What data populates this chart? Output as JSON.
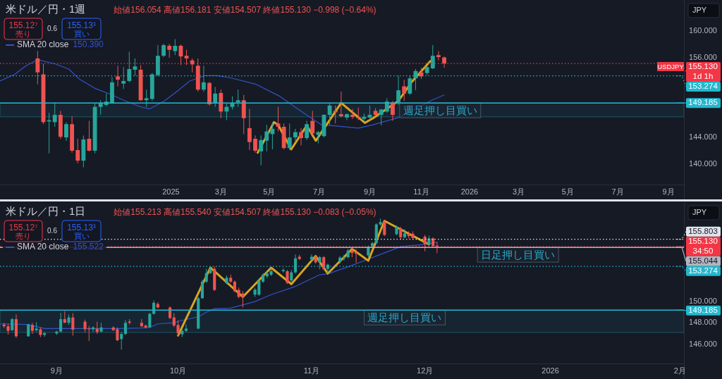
{
  "chart_data": [
    {
      "type": "candlestick",
      "title": "米ドル／円・1週",
      "subtitle": "始値156.054 高値156.181 安値154.507 終値155.130 −0.998 (−0.64%)",
      "x": [
        "2024-07-22",
        "2024-07-29",
        "2024-08-05",
        "2024-08-12",
        "2024-08-19",
        "2024-08-26",
        "2024-09-02",
        "2024-09-09",
        "2024-09-16",
        "2024-09-23",
        "2024-09-30",
        "2024-10-07",
        "2024-10-14",
        "2024-10-21",
        "2024-10-28",
        "2024-11-04",
        "2024-11-11",
        "2024-11-18",
        "2024-11-25",
        "2024-12-02",
        "2024-12-09",
        "2024-12-16",
        "2024-12-23",
        "2024-12-30",
        "2025-01-06",
        "2025-01-13",
        "2025-01-20",
        "2025-01-27",
        "2025-02-03",
        "2025-02-10",
        "2025-02-17",
        "2025-02-24",
        "2025-03-03",
        "2025-03-10",
        "2025-03-17",
        "2025-03-24",
        "2025-03-31",
        "2025-04-07",
        "2025-04-14",
        "2025-04-21",
        "2025-04-28",
        "2025-05-05",
        "2025-05-12",
        "2025-05-19",
        "2025-05-26",
        "2025-06-02",
        "2025-06-09",
        "2025-06-16",
        "2025-06-23",
        "2025-06-30",
        "2025-07-07",
        "2025-07-14",
        "2025-07-21",
        "2025-07-28",
        "2025-08-04",
        "2025-08-11",
        "2025-08-18",
        "2025-08-25",
        "2025-09-01",
        "2025-09-08",
        "2025-09-15",
        "2025-09-22",
        "2025-09-29",
        "2025-10-06",
        "2025-10-13",
        "2025-10-20",
        "2025-10-27",
        "2025-11-03",
        "2025-11-10",
        "2025-11-17",
        "2025-11-24",
        "2025-12-01"
      ],
      "ohlc": [
        [
          155.9,
          157.0,
          152.0,
          153.8
        ],
        [
          153.5,
          155.1,
          146.0,
          146.3
        ],
        [
          146.4,
          147.7,
          141.6,
          146.6
        ],
        [
          146.3,
          149.3,
          145.6,
          147.4
        ],
        [
          147.4,
          148.0,
          143.8,
          144.1
        ],
        [
          144.0,
          146.3,
          143.5,
          146.0
        ],
        [
          146.0,
          147.2,
          141.7,
          142.0
        ],
        [
          142.1,
          143.8,
          140.1,
          140.5
        ],
        [
          140.5,
          144.3,
          139.5,
          143.7
        ],
        [
          143.8,
          146.5,
          141.9,
          142.0
        ],
        [
          142.0,
          149.1,
          141.6,
          148.6
        ],
        [
          148.6,
          149.6,
          147.4,
          149.1
        ],
        [
          148.9,
          150.6,
          148.7,
          149.4
        ],
        [
          149.1,
          153.1,
          149.1,
          152.3
        ],
        [
          153.2,
          154.8,
          151.7,
          152.7
        ],
        [
          152.1,
          154.6,
          151.3,
          152.5
        ],
        [
          152.5,
          156.9,
          152.3,
          154.3
        ],
        [
          154.2,
          155.9,
          153.3,
          154.7
        ],
        [
          154.2,
          154.9,
          149.5,
          149.6
        ],
        [
          149.6,
          151.2,
          148.6,
          149.9
        ],
        [
          149.8,
          153.7,
          149.5,
          153.5
        ],
        [
          153.4,
          157.9,
          153.2,
          156.3
        ],
        [
          156.3,
          158.1,
          156.1,
          157.9
        ],
        [
          157.8,
          158.1,
          156.0,
          157.2
        ],
        [
          157.0,
          158.8,
          156.4,
          157.8
        ],
        [
          157.8,
          158.0,
          154.9,
          156.2
        ],
        [
          156.3,
          157.2,
          154.9,
          155.9
        ],
        [
          155.6,
          155.9,
          153.8,
          155.0
        ],
        [
          154.8,
          155.9,
          150.9,
          151.2
        ],
        [
          151.2,
          154.8,
          150.9,
          152.3
        ],
        [
          152.2,
          152.4,
          148.8,
          149.0
        ],
        [
          149.1,
          151.6,
          148.6,
          150.6
        ],
        [
          150.7,
          151.2,
          146.9,
          147.9
        ],
        [
          147.9,
          149.2,
          146.6,
          148.6
        ],
        [
          148.6,
          150.2,
          148.2,
          149.1
        ],
        [
          149.3,
          151.2,
          148.6,
          149.6
        ],
        [
          149.6,
          150.4,
          144.5,
          146.9
        ],
        [
          145.4,
          148.3,
          142.1,
          143.3
        ],
        [
          143.8,
          144.3,
          141.7,
          142.0
        ],
        [
          141.9,
          144.3,
          139.8,
          143.6
        ],
        [
          143.5,
          145.9,
          141.9,
          144.9
        ],
        [
          144.5,
          146.3,
          142.2,
          145.3
        ],
        [
          146.1,
          148.6,
          144.9,
          145.6
        ],
        [
          145.6,
          146.1,
          142.2,
          142.4
        ],
        [
          142.4,
          146.1,
          142.1,
          144.0
        ],
        [
          144.0,
          145.3,
          143.5,
          144.8
        ],
        [
          144.8,
          145.4,
          142.8,
          143.9
        ],
        [
          143.9,
          146.5,
          143.6,
          146.0
        ],
        [
          146.5,
          148.0,
          144.3,
          144.6
        ],
        [
          144.4,
          145.0,
          143.1,
          144.8
        ],
        [
          144.2,
          147.5,
          144.0,
          147.4
        ],
        [
          147.4,
          149.2,
          145.9,
          148.8
        ],
        [
          148.0,
          148.8,
          146.1,
          147.8
        ],
        [
          147.5,
          150.9,
          147.0,
          147.2
        ],
        [
          147.0,
          147.6,
          146.6,
          147.5
        ],
        [
          147.4,
          148.3,
          146.8,
          147.1
        ],
        [
          147.1,
          148.5,
          146.6,
          146.9
        ],
        [
          146.8,
          147.6,
          146.5,
          147.1
        ],
        [
          147.0,
          148.8,
          146.6,
          147.4
        ],
        [
          148.0,
          148.4,
          147.2,
          147.4
        ],
        [
          147.4,
          148.3,
          145.8,
          148.2
        ],
        [
          147.9,
          149.9,
          147.7,
          149.4
        ],
        [
          149.3,
          149.5,
          146.5,
          147.4
        ],
        [
          149.3,
          153.3,
          148.9,
          151.1
        ],
        [
          151.7,
          152.7,
          149.5,
          150.6
        ],
        [
          150.6,
          153.3,
          150.4,
          152.9
        ],
        [
          152.9,
          154.3,
          151.1,
          154.0
        ],
        [
          153.8,
          154.5,
          152.8,
          153.2
        ],
        [
          153.7,
          154.7,
          153.4,
          154.6
        ],
        [
          154.4,
          157.9,
          154.3,
          156.3
        ],
        [
          156.4,
          157.0,
          155.6,
          156.1
        ],
        [
          156.054,
          156.181,
          154.507,
          155.13
        ]
      ],
      "series": [
        {
          "name": "SMA 20 close",
          "type": "line",
          "color": "#3452c6",
          "x": [
            "2024-06-06",
            "2024-06-24",
            "2024-07-08",
            "2024-07-22",
            "2024-08-12",
            "2024-08-29",
            "2024-09-11",
            "2024-09-30",
            "2024-10-21",
            "2024-11-06",
            "2024-11-25",
            "2024-12-06",
            "2024-12-24",
            "2025-01-10",
            "2025-01-24",
            "2025-02-11",
            "2025-02-26",
            "2025-03-14",
            "2025-04-15",
            "2025-05-14",
            "2025-06-12",
            "2025-07-04",
            "2025-07-25",
            "2025-08-18",
            "2025-09-05",
            "2025-10-06",
            "2025-10-28",
            "2025-11-14",
            "2025-12-01"
          ],
          "values": [
            152.5,
            153.5,
            154.8,
            155.7,
            155.1,
            154.3,
            152.8,
            151.4,
            150.4,
            149.5,
            148.6,
            148.3,
            149.5,
            151.1,
            152.5,
            153.3,
            153.3,
            153.0,
            152.0,
            150.2,
            147.7,
            145.9,
            145.7,
            145.4,
            145.9,
            147.0,
            148.3,
            149.5,
            150.4
          ]
        },
        {
          "type": "line",
          "color": "#d9a41e",
          "x": [
            "2025-04-17",
            "2025-05-07",
            "2025-05-12",
            "2025-05-28",
            "2025-06-16",
            "2025-06-27",
            "2025-07-28",
            "2025-08-26",
            "2025-09-05",
            "2025-10-06",
            "2025-10-22",
            "2025-11-14"
          ],
          "values": [
            141.7,
            146.3,
            145.9,
            142.2,
            145.8,
            143.5,
            149.2,
            146.2,
            146.9,
            149.5,
            152.3,
            155.5
          ]
        }
      ],
      "xlim": [
        "2024-06-06",
        "2026-09-20"
      ],
      "xticks": [
        {
          "value": "2025-01-01",
          "label": "2025"
        },
        {
          "value": "2025-03-03",
          "label": "3月"
        },
        {
          "value": "2025-05-01",
          "label": "5月"
        },
        {
          "value": "2025-07-01",
          "label": "7月"
        },
        {
          "value": "2025-09-01",
          "label": "9月"
        },
        {
          "value": "2025-11-03",
          "label": "11月"
        },
        {
          "value": "2026-01-01",
          "label": "2026"
        },
        {
          "value": "2026-03-02",
          "label": "3月"
        },
        {
          "value": "2026-05-01",
          "label": "5月"
        },
        {
          "value": "2026-07-01",
          "label": "7月"
        },
        {
          "value": "2026-09-01",
          "label": "9月"
        }
      ],
      "ylim": [
        136.9,
        164.7
      ],
      "yticks": [
        {
          "value": 140,
          "label": "140.000"
        },
        {
          "value": 144,
          "label": "144.000"
        },
        {
          "value": 156,
          "label": "156.000"
        },
        {
          "value": 160,
          "label": "160.000"
        }
      ],
      "ref_lines": [
        {
          "axis": "y",
          "value": 155.13,
          "label": "155.130\n1d 1h",
          "color": "#f23645",
          "line_style": "dotted"
        },
        {
          "axis": "y",
          "value": 153.274,
          "label": "153.274",
          "color": "#22b8cf",
          "line_style": "dotted"
        },
        {
          "axis": "y",
          "value": 149.185,
          "label": "149.185",
          "color": "#22b8cf",
          "line_style": "solid"
        }
      ],
      "bands": [
        {
          "axis": "y",
          "from": 147.1,
          "to": 149.185,
          "color": "#22b8cf"
        }
      ],
      "annotations": [
        "155.12⁷",
        "売り",
        "0.6",
        "155.13³",
        "買い",
        "150.390",
        "JPY",
        "USDJPY",
        {
          "text": "週足押し目買い",
          "x": "2025-11-26",
          "y": 149.185
        }
      ],
      "legend": "top left"
    },
    {
      "type": "candlestick",
      "title": "米ドル／円・1日",
      "subtitle": "始値155.213 高値155.540 安値154.507 終値155.130 −0.083 (−0.05%)",
      "x": [
        "2025-08-19",
        "2025-08-20",
        "2025-08-21",
        "2025-08-22",
        "2025-08-25",
        "2025-08-26",
        "2025-08-27",
        "2025-08-28",
        "2025-08-29",
        "2025-09-01",
        "2025-09-02",
        "2025-09-03",
        "2025-09-04",
        "2025-09-05",
        "2025-09-08",
        "2025-09-09",
        "2025-09-10",
        "2025-09-11",
        "2025-09-12",
        "2025-09-15",
        "2025-09-16",
        "2025-09-17",
        "2025-09-18",
        "2025-09-19",
        "2025-09-22",
        "2025-09-23",
        "2025-09-24",
        "2025-09-25",
        "2025-09-26",
        "2025-09-29",
        "2025-09-30",
        "2025-10-01",
        "2025-10-02",
        "2025-10-03",
        "2025-10-06",
        "2025-10-07",
        "2025-10-08",
        "2025-10-09",
        "2025-10-10",
        "2025-10-13",
        "2025-10-14",
        "2025-10-15",
        "2025-10-16",
        "2025-10-17",
        "2025-10-20",
        "2025-10-21",
        "2025-10-22",
        "2025-10-23",
        "2025-10-24",
        "2025-10-27",
        "2025-10-28",
        "2025-10-29",
        "2025-10-30",
        "2025-10-31",
        "2025-11-03",
        "2025-11-04",
        "2025-11-05",
        "2025-11-06",
        "2025-11-07",
        "2025-11-10",
        "2025-11-11",
        "2025-11-12",
        "2025-11-13",
        "2025-11-14",
        "2025-11-17",
        "2025-11-18",
        "2025-11-19",
        "2025-11-20",
        "2025-11-21",
        "2025-11-24",
        "2025-11-25",
        "2025-11-26",
        "2025-11-27",
        "2025-11-28",
        "2025-12-01",
        "2025-12-02",
        "2025-12-03",
        "2025-12-04"
      ],
      "ohlc": [
        [
          147.84,
          148.0,
          147.5,
          147.68
        ],
        [
          147.68,
          147.9,
          146.9,
          147.25
        ],
        [
          147.31,
          148.45,
          147.25,
          148.34
        ],
        [
          148.34,
          148.78,
          146.59,
          146.74
        ],
        [
          146.74,
          147.9,
          146.7,
          147.84
        ],
        [
          147.8,
          148.0,
          146.96,
          147.25
        ],
        [
          147.31,
          148.05,
          147.18,
          147.46
        ],
        [
          147.4,
          147.57,
          146.66,
          146.87
        ],
        [
          146.87,
          147.14,
          146.7,
          147.03
        ],
        [
          147.0,
          147.25,
          146.87,
          147.18
        ],
        [
          147.18,
          148.93,
          147.1,
          148.34
        ],
        [
          148.34,
          149.1,
          147.97,
          148.01
        ],
        [
          148.0,
          148.78,
          147.8,
          148.5
        ],
        [
          148.5,
          148.9,
          146.8,
          147.36
        ],
        [
          148.1,
          148.3,
          147.1,
          147.4
        ],
        [
          147.46,
          147.7,
          146.3,
          147.4
        ],
        [
          147.4,
          147.68,
          147.14,
          147.57
        ],
        [
          147.46,
          148.1,
          146.96,
          147.14
        ],
        [
          147.18,
          148.0,
          147.1,
          147.57
        ],
        [
          147.57,
          147.68,
          147.25,
          147.31
        ],
        [
          147.4,
          147.57,
          146.3,
          146.37
        ],
        [
          146.48,
          147.14,
          145.5,
          146.96
        ],
        [
          146.96,
          148.27,
          146.87,
          148.0
        ],
        [
          148.12,
          148.34,
          147.84,
          148.01
        ],
        [
          148.0,
          148.34,
          147.6,
          147.68
        ],
        [
          147.75,
          147.84,
          147.46,
          147.57
        ],
        [
          147.57,
          148.93,
          147.53,
          148.84
        ],
        [
          148.84,
          150.09,
          148.78,
          149.87
        ],
        [
          149.76,
          149.93,
          149.37,
          149.43
        ],
        [
          149.43,
          149.54,
          148.34,
          148.45
        ],
        [
          148.5,
          148.9,
          147.6,
          147.75
        ],
        [
          147.8,
          148.23,
          146.7,
          147.03
        ],
        [
          146.93,
          147.4,
          146.66,
          147.25
        ],
        [
          147.25,
          147.84,
          147.14,
          147.46
        ],
        [
          147.46,
          150.42,
          147.4,
          150.3
        ],
        [
          150.3,
          152.0,
          150.24,
          151.84
        ],
        [
          151.84,
          153.04,
          151.73,
          152.64
        ],
        [
          152.64,
          153.21,
          152.56,
          153.04
        ],
        [
          153.04,
          153.26,
          150.96,
          151.07
        ],
        [
          151.68,
          152.43,
          151.62,
          152.21
        ],
        [
          152.21,
          152.5,
          151.73,
          151.84
        ],
        [
          151.84,
          151.95,
          150.85,
          150.96
        ],
        [
          151.07,
          151.29,
          150.3,
          150.42
        ],
        [
          150.74,
          150.96,
          149.43,
          150.42
        ],
        [
          150.63,
          151.25,
          150.42,
          151.1
        ],
        [
          150.63,
          152.16,
          150.52,
          151.9
        ],
        [
          151.84,
          152.64,
          151.73,
          152.49
        ],
        [
          152.34,
          152.78,
          152.16,
          152.6
        ],
        [
          152.49,
          153.04,
          152.38,
          152.82
        ],
        [
          152.82,
          153.1,
          152.7,
          152.93
        ],
        [
          152.82,
          152.93,
          151.62,
          151.73
        ],
        [
          151.95,
          152.93,
          151.84,
          152.71
        ],
        [
          152.71,
          154.39,
          152.6,
          154.02
        ],
        [
          154.17,
          154.35,
          153.87,
          153.96
        ],
        [
          153.91,
          154.39,
          153.74,
          154.17
        ],
        [
          154.17,
          154.3,
          153.52,
          153.65
        ],
        [
          153.65,
          154.24,
          153.0,
          154.13
        ],
        [
          154.13,
          154.24,
          152.93,
          153.04
        ],
        [
          153.04,
          153.52,
          152.6,
          153.43
        ],
        [
          153.74,
          154.24,
          153.52,
          154.09
        ],
        [
          154.02,
          154.35,
          153.8,
          154.13
        ],
        [
          154.13,
          154.9,
          154.02,
          154.74
        ],
        [
          154.74,
          155.0,
          154.13,
          154.52
        ],
        [
          154.55,
          154.9,
          153.6,
          154.46
        ],
        [
          154.3,
          155.22,
          154.13,
          155.11
        ],
        [
          155.11,
          155.55,
          155.0,
          155.44
        ],
        [
          155.44,
          157.3,
          155.33,
          157.19
        ],
        [
          157.19,
          157.74,
          157.08,
          157.41
        ],
        [
          157.41,
          157.63,
          156.1,
          156.21
        ],
        [
          156.28,
          157.08,
          156.17,
          156.97
        ],
        [
          156.8,
          156.97,
          155.77,
          155.99
        ],
        [
          155.99,
          156.75,
          155.88,
          156.36
        ],
        [
          156.32,
          156.54,
          155.88,
          156.1
        ],
        [
          156.32,
          156.54,
          155.77,
          155.92
        ],
        [
          156.05,
          156.21,
          154.68,
          155.33
        ],
        [
          155.33,
          156.14,
          155.22,
          155.88
        ],
        [
          155.88,
          155.99,
          155.0,
          155.18
        ],
        [
          155.213,
          155.54,
          154.507,
          155.13
        ]
      ],
      "series": [
        {
          "name": "SMA 20 close",
          "type": "line",
          "color": "#3452c6",
          "x": [
            "2025-08-18",
            "2025-08-25",
            "2025-08-29",
            "2025-09-04",
            "2025-09-10",
            "2025-09-16",
            "2025-09-22",
            "2025-09-24",
            "2025-09-26",
            "2025-09-30",
            "2025-10-02",
            "2025-10-06",
            "2025-10-08",
            "2025-10-10",
            "2025-10-14",
            "2025-10-20",
            "2025-10-24",
            "2025-10-30",
            "2025-11-05",
            "2025-11-07",
            "2025-11-13",
            "2025-11-19",
            "2025-11-25",
            "2025-12-01",
            "2025-12-04"
          ],
          "values": [
            147.9,
            147.84,
            147.46,
            147.46,
            147.46,
            147.46,
            147.51,
            147.57,
            147.9,
            148.01,
            148.23,
            148.56,
            148.99,
            149.32,
            149.37,
            149.98,
            150.63,
            151.4,
            152.49,
            152.56,
            153.37,
            154.24,
            155.11,
            155.33,
            155.52
          ]
        },
        {
          "type": "line",
          "color": "#d9a41e",
          "x": [
            "2025-10-01",
            "2025-10-09",
            "2025-10-17",
            "2025-10-24",
            "2025-10-29",
            "2025-11-04",
            "2025-11-07",
            "2025-11-13",
            "2025-11-17",
            "2025-11-21",
            "2025-12-02"
          ],
          "values": [
            146.81,
            153.15,
            150.42,
            153.15,
            151.62,
            154.24,
            152.6,
            154.9,
            153.8,
            157.52,
            155.33
          ]
        }
      ],
      "xlim": [
        "2025-08-18",
        "2026-02-03"
      ],
      "xticks": [
        {
          "value": "2025-09-01",
          "label": "9月"
        },
        {
          "value": "2025-10-01",
          "label": "10月"
        },
        {
          "value": "2025-11-03",
          "label": "11月"
        },
        {
          "value": "2025-12-01",
          "label": "12月"
        },
        {
          "value": "2026-01-01",
          "label": "2026"
        },
        {
          "value": "2026-02-02",
          "label": "2月"
        }
      ],
      "ylim": [
        144.2,
        159.2
      ],
      "yticks": [
        {
          "value": 146,
          "label": "146.000"
        },
        {
          "value": 148,
          "label": "148.000"
        },
        {
          "value": 150,
          "label": "150.000"
        }
      ],
      "ref_lines": [
        {
          "axis": "y",
          "value": 155.13,
          "label": "155.130\n34:50",
          "color": "#f23645",
          "line_style": "dotted"
        },
        {
          "axis": "y",
          "value": 155.803,
          "label": "155.803",
          "color": "#e0e3eb",
          "line_style": "dotted"
        },
        {
          "axis": "y",
          "value": 155.044,
          "label": "155.044",
          "color": "#b2b5be",
          "line_style": "solid"
        },
        {
          "axis": "y",
          "value": 153.274,
          "label": "153.274",
          "color": "#22b8cf",
          "line_style": "dotted"
        },
        {
          "axis": "y",
          "value": 149.185,
          "label": "149.185",
          "color": "#22b8cf",
          "line_style": "solid"
        }
      ],
      "bands": [
        {
          "axis": "y",
          "from": 147.1,
          "to": 149.185,
          "color": "#22b8cf"
        }
      ],
      "annotations": [
        "155.12⁷",
        "売り",
        "0.6",
        "155.13³",
        "買い",
        "155.522",
        "JPY",
        {
          "text": "週足押し目買い",
          "x": "2025-11-26",
          "y": 149.185
        },
        {
          "text": "日足押し目買い",
          "x": "2025-12-24",
          "y": 155.044
        }
      ],
      "legend": "top left"
    }
  ]
}
